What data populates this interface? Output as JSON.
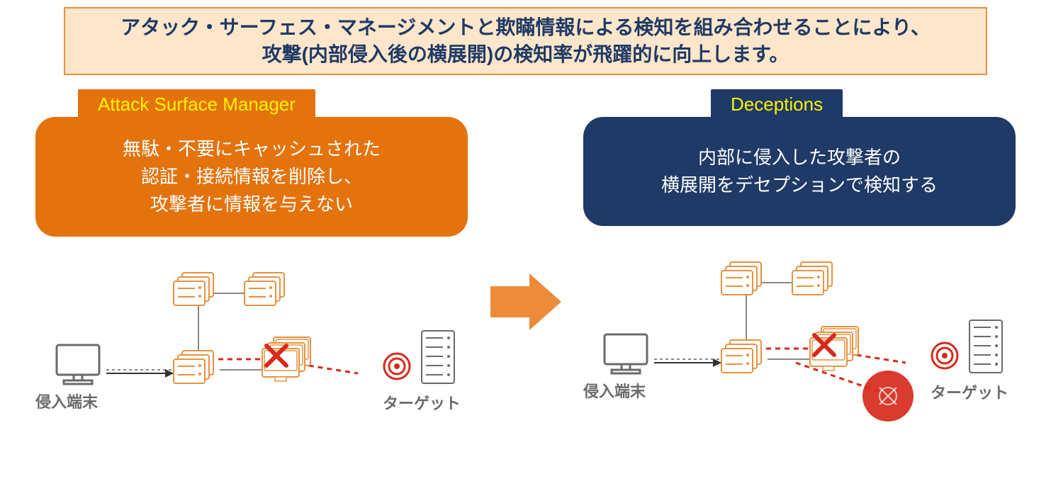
{
  "banner": {
    "line1": "アタック・サーフェス・マネージメントと欺瞞情報による検知を組み合わせることにより、",
    "line2": "攻撃(内部侵入後の横展開)の検知率が飛躍的に向上します。",
    "bg": "#fde6c9",
    "border": "#e69240",
    "text_color": "#1f3a66",
    "fontsize": 28
  },
  "arrow": {
    "color": "#ed8b3b"
  },
  "left": {
    "tab": {
      "text": "Attack Surface Manager",
      "bg": "#e4730d",
      "text_color": "#fff200"
    },
    "card": {
      "bg": "#e4730d",
      "line1": "無駄・不要にキャッシュされた",
      "line2": "認証・接続情報を削除し、",
      "line3": "攻撃者に情報を与えない"
    },
    "diagram": {
      "entry_label": "侵入端末",
      "target_label": "ターゲット",
      "label_color": "#6a6a6a",
      "pc_color": "#6a6a6a",
      "server_color": "#e69240",
      "target_color": "#d62a1c",
      "line_color": "#888888",
      "red_line": "#d62a1c",
      "x_color": "#d62a1c",
      "has_decoy": false
    }
  },
  "right": {
    "tab": {
      "text": "Deceptions",
      "bg": "#1f3a66",
      "text_color": "#fff200"
    },
    "card": {
      "bg": "#1f3a66",
      "line1": "内部に侵入した攻撃者の",
      "line2": "横展開をデセプションで検知する",
      "line3": ""
    },
    "diagram": {
      "entry_label": "侵入端末",
      "target_label": "ターゲット",
      "label_color": "#6a6a6a",
      "pc_color": "#6a6a6a",
      "server_color": "#e69240",
      "target_color": "#d62a1c",
      "line_color": "#888888",
      "red_line": "#d62a1c",
      "x_color": "#d62a1c",
      "decoy_color": "#d62a1c",
      "has_decoy": true
    }
  }
}
